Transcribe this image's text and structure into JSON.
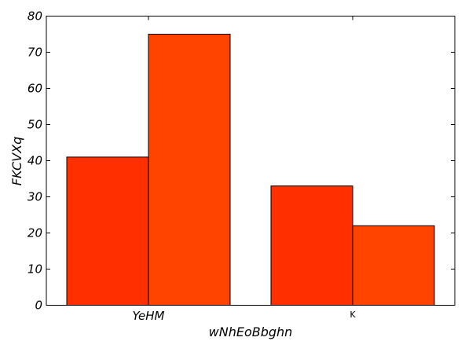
{
  "chart_data": {
    "type": "bar",
    "title": "",
    "xlabel": "wNhEoBbghn",
    "ylabel": "FKCVXq",
    "categories": [
      "YeHM",
      "K"
    ],
    "series": [
      {
        "values": [
          41,
          33
        ],
        "color": "#ff2f00"
      },
      {
        "values": [
          75,
          22
        ],
        "color": "#ff4400"
      }
    ],
    "ylim": [
      0,
      80
    ],
    "yticks": [
      0,
      10,
      20,
      30,
      40,
      50,
      60,
      70,
      80
    ],
    "grid": false,
    "legend": "none"
  }
}
